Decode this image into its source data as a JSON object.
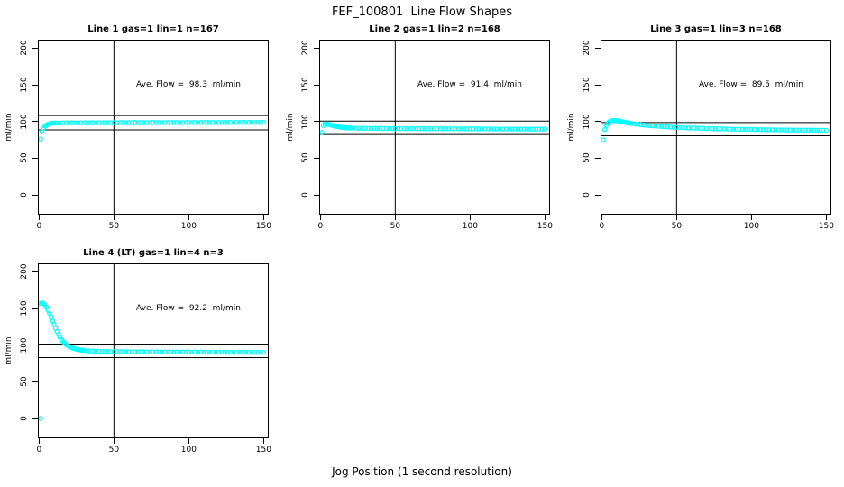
{
  "figure": {
    "title": "FEF_100801  Line Flow Shapes",
    "xlabel": "Jog Position (1 second resolution)",
    "background": "#ffffff"
  },
  "style": {
    "point_color": "#00FFFF",
    "line_color": "#000000",
    "point_radius": 2.1
  },
  "axes": {
    "ylabel": "ml/min",
    "y_ticks": [
      0,
      50,
      100,
      150,
      200
    ],
    "x_ticks": [
      0,
      50,
      100,
      150
    ],
    "y_range": [
      -27,
      211.5
    ],
    "x_range": [
      -0.8,
      153.4
    ],
    "grid": false
  },
  "chart_data": [
    {
      "type": "scatter",
      "title": "Line 1 gas=1 lin=1 n=167",
      "annotation": "Ave. Flow =  98.3  ml/min",
      "ave_flow": 98.3,
      "n": 167,
      "vline_x": 50,
      "reference_lines_y": [
        108.1,
        88.5
      ],
      "points": [
        [
          1,
          76
        ],
        [
          2,
          86
        ],
        [
          3,
          90.5
        ],
        [
          4,
          93.5
        ],
        [
          5,
          95.3
        ],
        [
          6,
          96.3
        ],
        [
          7,
          96.9
        ],
        [
          8,
          97.3
        ],
        [
          9,
          97.6
        ],
        [
          10,
          97.8
        ],
        [
          11,
          97.9
        ],
        [
          12,
          98
        ],
        [
          14,
          98
        ],
        [
          16,
          98.1
        ],
        [
          18,
          98.1
        ],
        [
          20,
          98.2
        ],
        [
          22,
          98.2
        ],
        [
          24,
          98.1
        ],
        [
          26,
          98.2
        ],
        [
          28,
          98.3
        ],
        [
          30,
          98.2
        ],
        [
          32,
          98.3
        ],
        [
          34,
          98.3
        ],
        [
          36,
          98.2
        ],
        [
          38,
          98.3
        ],
        [
          40,
          98.4
        ],
        [
          42,
          98.3
        ],
        [
          44,
          98.4
        ],
        [
          46,
          98.3
        ],
        [
          48,
          98.4
        ],
        [
          50,
          98.4
        ],
        [
          52,
          98.3
        ],
        [
          54,
          98.4
        ],
        [
          56,
          98.5
        ],
        [
          58,
          98.4
        ],
        [
          60,
          98.5
        ],
        [
          62,
          98.4
        ],
        [
          64,
          98.5
        ],
        [
          66,
          98.4
        ],
        [
          68,
          98.5
        ],
        [
          70,
          98.5
        ],
        [
          72,
          98.4
        ],
        [
          74,
          98.5
        ],
        [
          76,
          98.5
        ],
        [
          78,
          98.6
        ],
        [
          80,
          98.5
        ],
        [
          82,
          98.5
        ],
        [
          84,
          98.6
        ],
        [
          86,
          98.5
        ],
        [
          88,
          98.6
        ],
        [
          90,
          98.5
        ],
        [
          92,
          98.6
        ],
        [
          94,
          98.6
        ],
        [
          96,
          98.5
        ],
        [
          98,
          98.6
        ],
        [
          100,
          98.6
        ],
        [
          102,
          98.6
        ],
        [
          104,
          98.7
        ],
        [
          106,
          98.6
        ],
        [
          108,
          98.6
        ],
        [
          110,
          98.7
        ],
        [
          112,
          98.6
        ],
        [
          114,
          98.7
        ],
        [
          116,
          98.6
        ],
        [
          118,
          98.7
        ],
        [
          120,
          98.7
        ],
        [
          122,
          98.6
        ],
        [
          124,
          98.7
        ],
        [
          126,
          98.7
        ],
        [
          128,
          98.7
        ],
        [
          130,
          98.6
        ],
        [
          132,
          98.7
        ],
        [
          134,
          98.7
        ],
        [
          136,
          98.8
        ],
        [
          138,
          98.7
        ],
        [
          140,
          98.7
        ],
        [
          142,
          98.8
        ],
        [
          144,
          98.7
        ],
        [
          146,
          98.8
        ],
        [
          148,
          98.7
        ],
        [
          150,
          98.8
        ]
      ]
    },
    {
      "type": "scatter",
      "title": "Line 2 gas=1 lin=2 n=168",
      "annotation": "Ave. Flow =  91.4  ml/min",
      "ave_flow": 91.4,
      "n": 168,
      "vline_x": 50,
      "reference_lines_y": [
        100.5,
        82.3
      ],
      "points": [
        [
          1,
          85
        ],
        [
          2,
          94.5
        ],
        [
          3,
          96.8
        ],
        [
          4,
          96.7
        ],
        [
          5,
          96.3
        ],
        [
          6,
          95.7
        ],
        [
          7,
          95.1
        ],
        [
          8,
          94.5
        ],
        [
          9,
          94
        ],
        [
          10,
          93.5
        ],
        [
          11,
          93.1
        ],
        [
          12,
          92.7
        ],
        [
          13,
          92.4
        ],
        [
          14,
          92.1
        ],
        [
          15,
          91.9
        ],
        [
          16,
          91.7
        ],
        [
          17,
          91.5
        ],
        [
          18,
          91.3
        ],
        [
          19,
          91.2
        ],
        [
          20,
          91.1
        ],
        [
          22,
          90.9
        ],
        [
          24,
          90.8
        ],
        [
          26,
          90.7
        ],
        [
          28,
          90.7
        ],
        [
          30,
          90.6
        ],
        [
          32,
          90.6
        ],
        [
          34,
          90.5
        ],
        [
          36,
          90.5
        ],
        [
          38,
          90.5
        ],
        [
          40,
          90.4
        ],
        [
          42,
          90.4
        ],
        [
          44,
          90.4
        ],
        [
          46,
          90.4
        ],
        [
          48,
          90.3
        ],
        [
          50,
          90.3
        ],
        [
          52,
          90.3
        ],
        [
          54,
          90.3
        ],
        [
          56,
          90.3
        ],
        [
          58,
          90.2
        ],
        [
          60,
          90.2
        ],
        [
          62,
          90.2
        ],
        [
          64,
          90.2
        ],
        [
          66,
          90.2
        ],
        [
          68,
          90.2
        ],
        [
          70,
          90.1
        ],
        [
          72,
          90.1
        ],
        [
          74,
          90.1
        ],
        [
          76,
          90.1
        ],
        [
          78,
          90.1
        ],
        [
          80,
          90.1
        ],
        [
          82,
          90
        ],
        [
          84,
          90
        ],
        [
          86,
          90
        ],
        [
          88,
          90
        ],
        [
          90,
          90
        ],
        [
          92,
          90
        ],
        [
          94,
          89.9
        ],
        [
          96,
          89.9
        ],
        [
          98,
          89.9
        ],
        [
          100,
          89.9
        ],
        [
          102,
          89.9
        ],
        [
          104,
          89.9
        ],
        [
          106,
          89.9
        ],
        [
          108,
          89.8
        ],
        [
          110,
          89.8
        ],
        [
          112,
          89.8
        ],
        [
          114,
          89.8
        ],
        [
          116,
          89.8
        ],
        [
          118,
          89.8
        ],
        [
          120,
          89.8
        ],
        [
          122,
          89.7
        ],
        [
          124,
          89.7
        ],
        [
          126,
          89.7
        ],
        [
          128,
          89.7
        ],
        [
          130,
          89.7
        ],
        [
          132,
          89.7
        ],
        [
          134,
          89.7
        ],
        [
          136,
          89.7
        ],
        [
          138,
          89.6
        ],
        [
          140,
          89.6
        ],
        [
          142,
          89.6
        ],
        [
          144,
          89.6
        ],
        [
          146,
          89.6
        ],
        [
          148,
          89.6
        ],
        [
          150,
          89.6
        ]
      ]
    },
    {
      "type": "scatter",
      "title": "Line 3 gas=1 lin=3 n=168",
      "annotation": "Ave. Flow =  89.5  ml/min",
      "ave_flow": 89.5,
      "n": 168,
      "vline_x": 50,
      "reference_lines_y": [
        98.5,
        80.6
      ],
      "points": [
        [
          1,
          75
        ],
        [
          2,
          89
        ],
        [
          3,
          94.5
        ],
        [
          4,
          97.5
        ],
        [
          5,
          99.5
        ],
        [
          6,
          100.5
        ],
        [
          7,
          101.1
        ],
        [
          8,
          101.3
        ],
        [
          9,
          101.2
        ],
        [
          10,
          101
        ],
        [
          11,
          100.7
        ],
        [
          12,
          100.3
        ],
        [
          13,
          99.9
        ],
        [
          14,
          99.5
        ],
        [
          15,
          99.1
        ],
        [
          16,
          98.7
        ],
        [
          17,
          98.3
        ],
        [
          18,
          98
        ],
        [
          19,
          97.6
        ],
        [
          20,
          97.3
        ],
        [
          22,
          96.7
        ],
        [
          24,
          96.1
        ],
        [
          26,
          95.6
        ],
        [
          28,
          95.1
        ],
        [
          30,
          94.7
        ],
        [
          32,
          94.3
        ],
        [
          34,
          94
        ],
        [
          36,
          93.7
        ],
        [
          38,
          93.4
        ],
        [
          40,
          93.1
        ],
        [
          42,
          92.9
        ],
        [
          44,
          92.6
        ],
        [
          46,
          92.4
        ],
        [
          48,
          92.2
        ],
        [
          50,
          92
        ],
        [
          52,
          91.8
        ],
        [
          54,
          91.6
        ],
        [
          56,
          91.4
        ],
        [
          58,
          91.3
        ],
        [
          60,
          91.1
        ],
        [
          62,
          91
        ],
        [
          64,
          90.8
        ],
        [
          66,
          90.7
        ],
        [
          68,
          90.5
        ],
        [
          70,
          90.4
        ],
        [
          72,
          90.3
        ],
        [
          74,
          90.2
        ],
        [
          76,
          90.1
        ],
        [
          78,
          90
        ],
        [
          80,
          89.9
        ],
        [
          82,
          89.8
        ],
        [
          84,
          89.7
        ],
        [
          86,
          89.6
        ],
        [
          88,
          89.5
        ],
        [
          90,
          89.4
        ],
        [
          92,
          89.4
        ],
        [
          94,
          89.3
        ],
        [
          96,
          89.2
        ],
        [
          98,
          89.2
        ],
        [
          100,
          89.1
        ],
        [
          102,
          89
        ],
        [
          104,
          89
        ],
        [
          106,
          88.9
        ],
        [
          108,
          88.8
        ],
        [
          110,
          88.8
        ],
        [
          112,
          88.7
        ],
        [
          114,
          88.7
        ],
        [
          116,
          88.6
        ],
        [
          118,
          88.6
        ],
        [
          120,
          88.5
        ],
        [
          122,
          88.5
        ],
        [
          124,
          88.4
        ],
        [
          126,
          88.4
        ],
        [
          128,
          88.4
        ],
        [
          130,
          88.3
        ],
        [
          132,
          88.3
        ],
        [
          134,
          88.3
        ],
        [
          136,
          88.2
        ],
        [
          138,
          88.2
        ],
        [
          140,
          88.2
        ],
        [
          142,
          88.1
        ],
        [
          144,
          88.1
        ],
        [
          146,
          88.1
        ],
        [
          148,
          88
        ],
        [
          150,
          88
        ]
      ]
    },
    {
      "type": "scatter",
      "title": "Line 4 (LT) gas=1 lin=4 n=3",
      "annotation": "Ave. Flow =  92.2  ml/min",
      "ave_flow": 92.2,
      "n": 3,
      "vline_x": 50,
      "reference_lines_y": [
        101.4,
        83.0
      ],
      "points": [
        [
          1,
          0
        ],
        [
          1,
          157
        ],
        [
          2,
          157.5
        ],
        [
          3,
          156.5
        ],
        [
          4,
          154.5
        ],
        [
          5,
          151.5
        ],
        [
          6,
          147.5
        ],
        [
          7,
          143
        ],
        [
          8,
          138
        ],
        [
          9,
          133
        ],
        [
          10,
          128
        ],
        [
          11,
          123
        ],
        [
          12,
          118.5
        ],
        [
          13,
          114.5
        ],
        [
          14,
          111
        ],
        [
          15,
          107.5
        ],
        [
          16,
          105
        ],
        [
          17,
          102.8
        ],
        [
          18,
          101
        ],
        [
          19,
          99.5
        ],
        [
          20,
          98.2
        ],
        [
          21,
          97.2
        ],
        [
          22,
          96.3
        ],
        [
          23,
          95.6
        ],
        [
          24,
          95
        ],
        [
          25,
          94.5
        ],
        [
          26,
          94
        ],
        [
          27,
          93.6
        ],
        [
          28,
          93.3
        ],
        [
          29,
          93
        ],
        [
          30,
          92.8
        ],
        [
          32,
          92.4
        ],
        [
          34,
          92.1
        ],
        [
          36,
          91.9
        ],
        [
          38,
          91.7
        ],
        [
          40,
          91.6
        ],
        [
          42,
          91.5
        ],
        [
          44,
          91.4
        ],
        [
          46,
          91.3
        ],
        [
          48,
          91.2
        ],
        [
          50,
          91.2
        ],
        [
          52,
          91.1
        ],
        [
          54,
          91.1
        ],
        [
          56,
          91
        ],
        [
          58,
          91
        ],
        [
          60,
          90.9
        ],
        [
          62,
          90.9
        ],
        [
          64,
          90.9
        ],
        [
          66,
          90.8
        ],
        [
          68,
          90.8
        ],
        [
          70,
          90.8
        ],
        [
          72,
          90.7
        ],
        [
          74,
          90.7
        ],
        [
          76,
          90.7
        ],
        [
          78,
          90.7
        ],
        [
          80,
          90.6
        ],
        [
          82,
          90.6
        ],
        [
          84,
          90.6
        ],
        [
          86,
          90.6
        ],
        [
          88,
          90.6
        ],
        [
          90,
          90.5
        ],
        [
          92,
          90.5
        ],
        [
          94,
          90.5
        ],
        [
          96,
          90.5
        ],
        [
          98,
          90.5
        ],
        [
          100,
          90.4
        ],
        [
          102,
          90.4
        ],
        [
          104,
          90.4
        ],
        [
          106,
          90.4
        ],
        [
          108,
          90.4
        ],
        [
          110,
          90.4
        ],
        [
          112,
          90.3
        ],
        [
          114,
          90.3
        ],
        [
          116,
          90.3
        ],
        [
          118,
          90.3
        ],
        [
          120,
          90.3
        ],
        [
          122,
          90.3
        ],
        [
          124,
          90.3
        ],
        [
          126,
          90.2
        ],
        [
          128,
          90.2
        ],
        [
          130,
          90.2
        ],
        [
          132,
          90.2
        ],
        [
          134,
          90.2
        ],
        [
          136,
          90.2
        ],
        [
          138,
          90.2
        ],
        [
          140,
          90.1
        ],
        [
          142,
          90.1
        ],
        [
          144,
          90.1
        ],
        [
          146,
          90.1
        ],
        [
          148,
          90.1
        ],
        [
          150,
          90.1
        ]
      ]
    }
  ]
}
